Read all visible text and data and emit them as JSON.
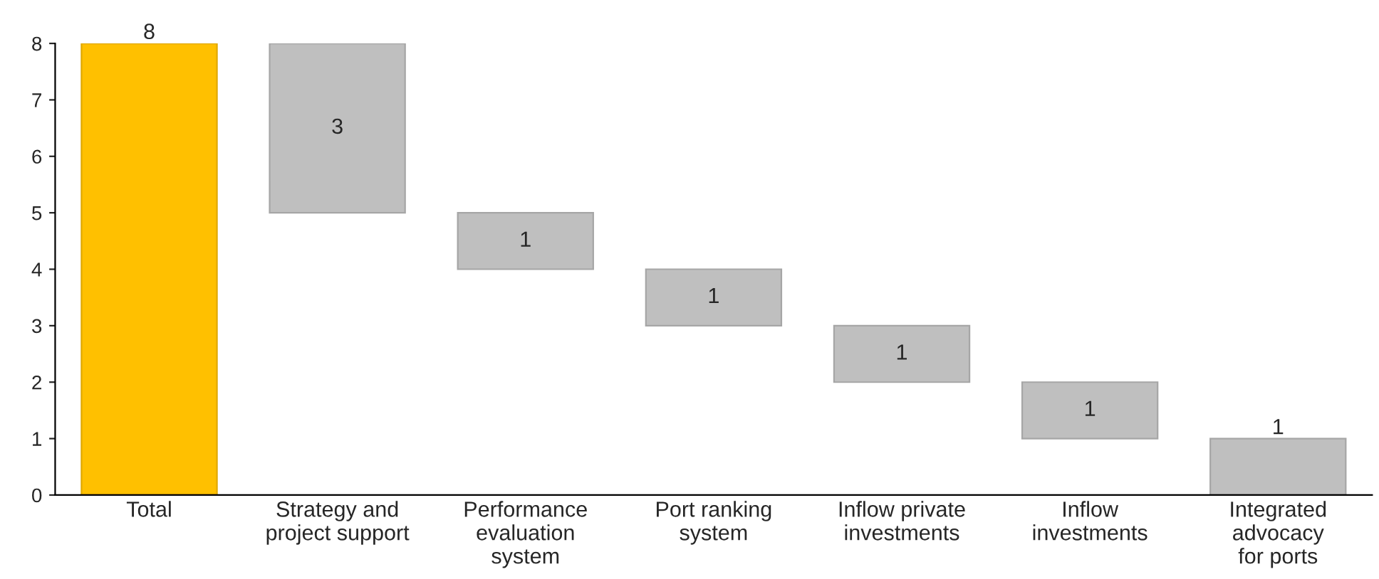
{
  "chart_data": {
    "type": "bar",
    "categories": [
      "Total",
      "Strategy and\nproject support",
      "Performance\nevaluation\nsystem",
      "Port ranking\nsystem",
      "Inflow private\ninvestments",
      "Inflow\ninvestments",
      "Integrated\nadvocacy\nfor ports"
    ],
    "values": [
      8,
      3,
      1,
      1,
      1,
      1,
      1
    ],
    "base": [
      0,
      5,
      4,
      3,
      2,
      1,
      0
    ],
    "colors": [
      "#ffc000",
      "#bfbfbf",
      "#bfbfbf",
      "#bfbfbf",
      "#bfbfbf",
      "#bfbfbf",
      "#bfbfbf"
    ],
    "ylim": [
      0,
      8
    ],
    "yticks": [
      0,
      1,
      2,
      3,
      4,
      5,
      6,
      7,
      8
    ],
    "data_labels": true,
    "grid": false,
    "legend": false
  }
}
